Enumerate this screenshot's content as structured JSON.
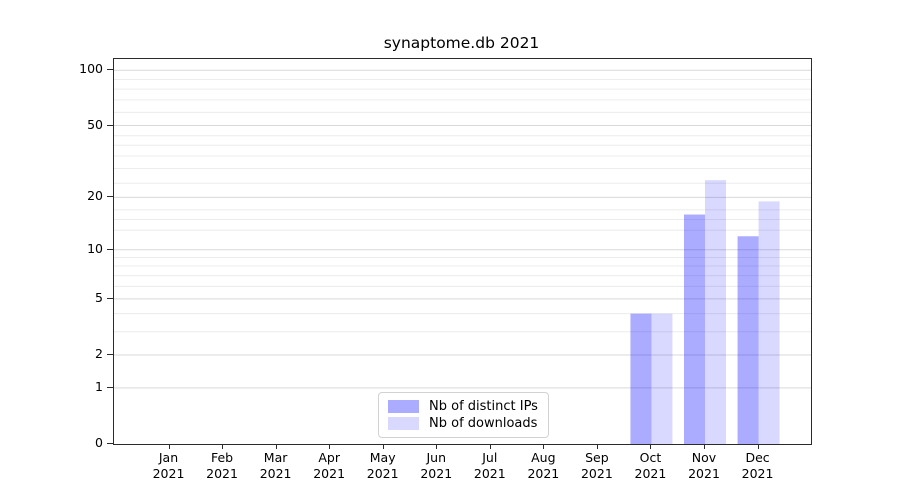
{
  "chart_data": {
    "type": "bar",
    "title": "synaptome.db 2021",
    "x_year": "2021",
    "categories": [
      "Jan",
      "Feb",
      "Mar",
      "Apr",
      "May",
      "Jun",
      "Jul",
      "Aug",
      "Sep",
      "Oct",
      "Nov",
      "Dec"
    ],
    "series": [
      {
        "name": "Nb of distinct IPs",
        "color": "rgba(0,0,255,0.33)",
        "values": [
          0,
          0,
          0,
          0,
          0,
          0,
          0,
          0,
          0,
          4,
          16,
          12
        ]
      },
      {
        "name": "Nb of downloads",
        "color": "rgba(0,0,255,0.15)",
        "values": [
          0,
          0,
          0,
          0,
          0,
          0,
          0,
          0,
          0,
          4,
          25,
          19
        ]
      }
    ],
    "y_axis": {
      "scale": "log1p",
      "ticks": [
        0,
        1,
        2,
        5,
        10,
        20,
        50,
        100
      ],
      "range": [
        0,
        115
      ]
    },
    "grid": {
      "major": true,
      "minor": true,
      "major_color": "#d9d9d9",
      "minor_color": "#ececec"
    },
    "legend": {
      "position": "lower center"
    }
  }
}
